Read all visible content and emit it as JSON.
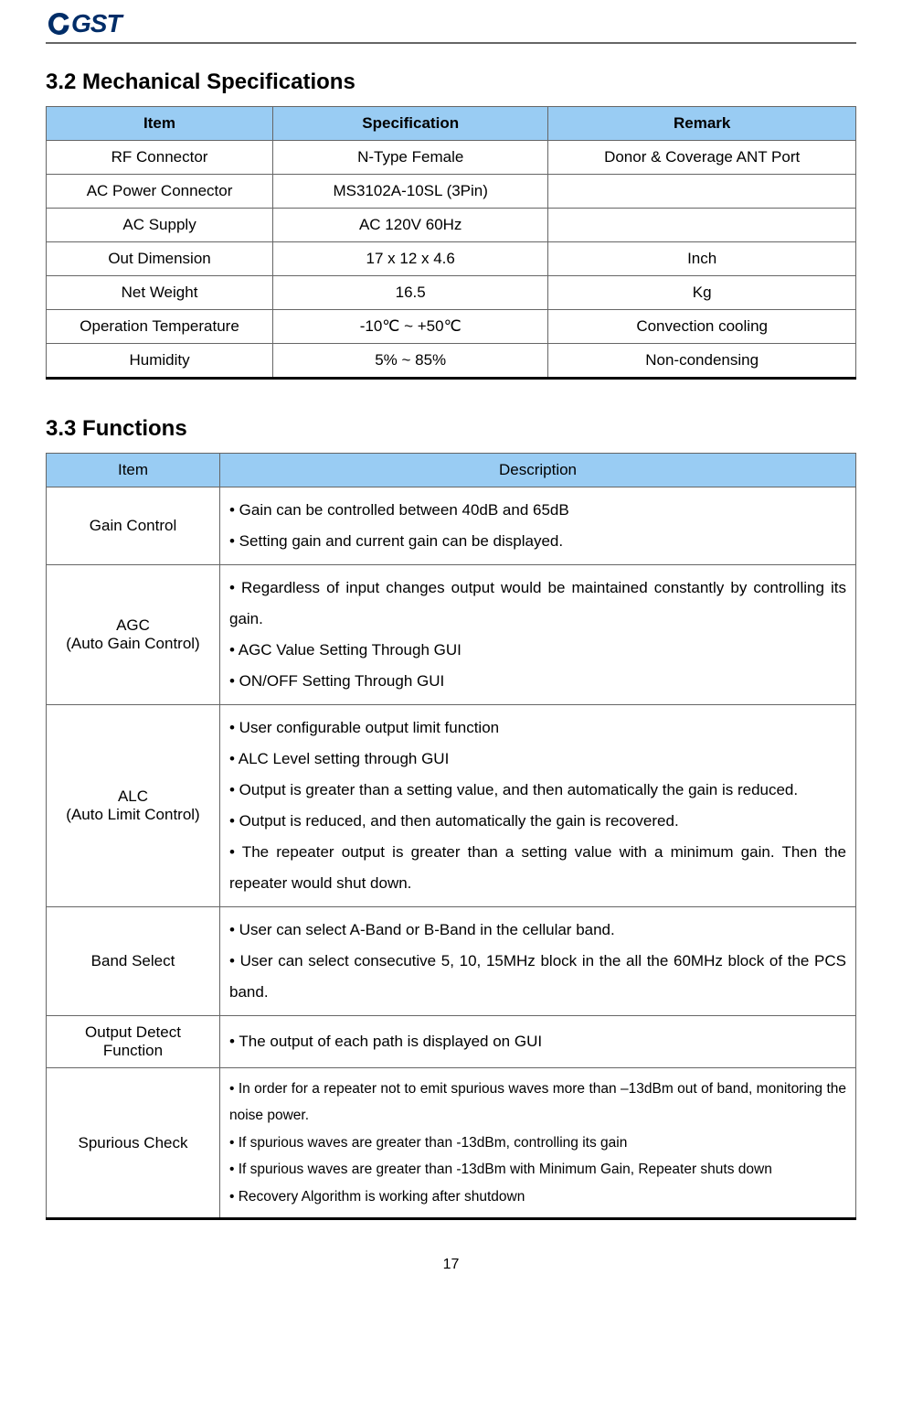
{
  "logo": {
    "text": "GST"
  },
  "colors": {
    "table_header_bg": "#99ccf3",
    "table_border": "#666666",
    "table_bottom_border": "#000000",
    "header_rule": "#666666",
    "logo_color": "#002d68",
    "page_bg": "#ffffff",
    "text": "#000000"
  },
  "section_spec": {
    "title": "3.2 Mechanical Specifications",
    "columns": [
      "Item",
      "Specification",
      "Remark"
    ],
    "col_widths_pct": [
      28,
      34,
      38
    ],
    "rows": [
      [
        "RF Connector",
        "N-Type Female",
        "Donor & Coverage ANT Port"
      ],
      [
        "AC Power Connector",
        "MS3102A-10SL (3Pin)",
        ""
      ],
      [
        "AC Supply",
        "AC 120V 60Hz",
        ""
      ],
      [
        "Out Dimension",
        "17 x 12 x 4.6",
        "Inch"
      ],
      [
        "Net Weight",
        "16.5",
        "Kg"
      ],
      [
        "Operation Temperature",
        "-10℃ ~ +50℃",
        "Convection cooling"
      ],
      [
        "Humidity",
        "5% ~ 85%",
        "Non-condensing"
      ]
    ]
  },
  "section_func": {
    "title": "3.3 Functions",
    "columns": [
      "Item",
      "Description"
    ],
    "col_widths_pct": [
      22,
      78
    ],
    "rows": [
      {
        "item": "Gain Control",
        "desc": "• Gain can be controlled between 40dB and 65dB\n• Setting gain and current gain can be displayed.",
        "justify": false,
        "small": false
      },
      {
        "item": "AGC\n(Auto Gain Control)",
        "desc": "• Regardless of input changes output would be maintained constantly by controlling its gain.\n• AGC Value Setting Through GUI\n• ON/OFF Setting Through GUI",
        "justify": true,
        "small": false
      },
      {
        "item": "ALC\n(Auto Limit Control)",
        "desc": "•  User configurable output limit function\n•  ALC Level setting through GUI\n• Output is greater than a setting value, and then automatically the gain is reduced.\n•  Output is reduced, and then automatically the gain is recovered.\n•  The repeater output is greater than a setting value with a minimum gain. Then the repeater would shut down.",
        "justify": true,
        "small": false
      },
      {
        "item": "Band Select",
        "desc": "• User can select A-Band or B-Band in the cellular band.\n• User can select consecutive 5, 10, 15MHz block in the all the 60MHz block of the PCS band.",
        "justify": true,
        "small": false
      },
      {
        "item": "Output Detect Function",
        "desc": "• The output of each path is displayed on GUI",
        "justify": false,
        "small": false
      },
      {
        "item": "Spurious Check",
        "desc": "• In order for a repeater not to emit spurious waves more than –13dBm out of band, monitoring the noise power.\n• If spurious waves are greater than -13dBm, controlling its gain\n• If spurious waves are greater than -13dBm with Minimum Gain, Repeater shuts down\n• Recovery Algorithm is working after shutdown",
        "justify": true,
        "small": true
      }
    ]
  },
  "page_number": "17"
}
